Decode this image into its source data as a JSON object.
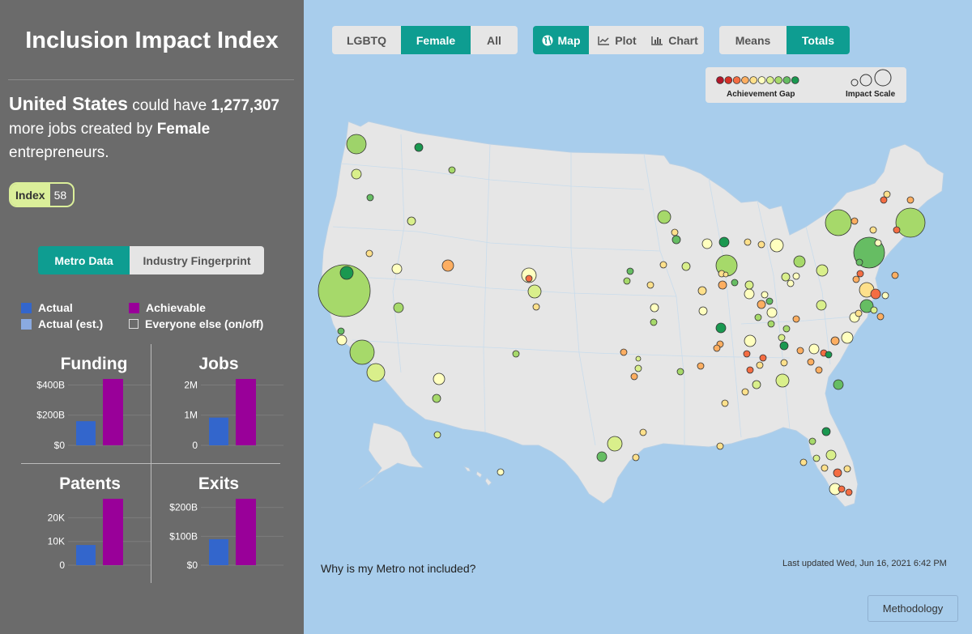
{
  "sidebar": {
    "title": "Inclusion Impact Index",
    "headline": {
      "country": "United States",
      "text1": " could have ",
      "jobs": "1,277,307",
      "text2": " more jobs created by ",
      "group": "Female",
      "text3": " entrepreneurs."
    },
    "index_label": "Index",
    "index_value": "58",
    "tabs": {
      "metro": "Metro Data",
      "industry": "Industry Fingerprint"
    },
    "legend": {
      "actual": "Actual",
      "achievable": "Achievable",
      "actual_est": "Actual (est.)",
      "everyone": "Everyone else (on/off)"
    },
    "colors": {
      "actual": "#3366cc",
      "actual_est": "#8aaae0",
      "achievable": "#990099"
    },
    "charts": [
      {
        "title": "Funding",
        "ticks": [
          "$400B",
          "$200B",
          "$0"
        ],
        "tick_values": [
          400,
          200,
          0
        ],
        "max": 440,
        "actual": 160,
        "achievable": 440
      },
      {
        "title": "Jobs",
        "ticks": [
          "2M",
          "1M",
          "0"
        ],
        "tick_values": [
          2,
          1,
          0
        ],
        "max": 2.2,
        "actual": 0.92,
        "achievable": 2.2
      },
      {
        "title": "Patents",
        "ticks": [
          "20K",
          "10K",
          "0"
        ],
        "tick_values": [
          20,
          10,
          0
        ],
        "max": 28,
        "actual": 8.5,
        "achievable": 28
      },
      {
        "title": "Exits",
        "ticks": [
          "$200B",
          "$100B",
          "$0"
        ],
        "tick_values": [
          200,
          100,
          0
        ],
        "max": 230,
        "actual": 90,
        "achievable": 230
      }
    ]
  },
  "toolbar": {
    "groups": [
      "LGBTQ",
      "Female",
      "All"
    ],
    "views": [
      "Map",
      "Plot",
      "Chart"
    ],
    "measures": [
      "Means",
      "Totals"
    ]
  },
  "legend": {
    "gap_label": "Achievement Gap",
    "impact_label": "Impact Scale",
    "gap_colors": [
      "#b2182b",
      "#d73027",
      "#f46d43",
      "#fdae61",
      "#fee08b",
      "#ffffbf",
      "#d9ef8b",
      "#a6d96a",
      "#66bd63",
      "#1a9850"
    ]
  },
  "metros": [
    [
      65,
      48,
      12,
      "#9ed36a"
    ],
    [
      142,
      52,
      5,
      "#1a9850"
    ],
    [
      65,
      85,
      6,
      "#d9ef8b"
    ],
    [
      82,
      114,
      4,
      "#66bd63"
    ],
    [
      133,
      143,
      5,
      "#d9ef8b"
    ],
    [
      183,
      80,
      4,
      "#a6d96a"
    ],
    [
      81,
      183,
      4,
      "#fee08b"
    ],
    [
      178,
      198,
      7,
      "#fdae61"
    ],
    [
      445,
      138,
      8,
      "#a6d96a"
    ],
    [
      458,
      157,
      4,
      "#fee08b"
    ],
    [
      460,
      166,
      5,
      "#66bd63"
    ],
    [
      498,
      171,
      6,
      "#ffffbf"
    ],
    [
      519,
      169,
      6,
      "#1a9850"
    ],
    [
      522,
      198,
      13,
      "#a6d96a"
    ],
    [
      521,
      209,
      3,
      "#fee08b"
    ],
    [
      548,
      169,
      4,
      "#fee08b"
    ],
    [
      565,
      172,
      4,
      "#fee08b"
    ],
    [
      584,
      173,
      8,
      "#ffffbf"
    ],
    [
      612,
      193,
      7,
      "#a6d96a"
    ],
    [
      640,
      204,
      7,
      "#d9ef8b"
    ],
    [
      595,
      212,
      5,
      "#d9ef8b"
    ],
    [
      608,
      211,
      4,
      "#ffffbf"
    ],
    [
      601,
      220,
      4,
      "#ffffbf"
    ],
    [
      550,
      222,
      5,
      "#d9ef8b"
    ],
    [
      516,
      208,
      4,
      "#fee08b"
    ],
    [
      517,
      222,
      5,
      "#fdae61"
    ],
    [
      532,
      219,
      4,
      "#66bd63"
    ],
    [
      550,
      233,
      6,
      "#ffffbf"
    ],
    [
      569,
      234,
      4,
      "#ffffbf"
    ],
    [
      561,
      262,
      4,
      "#a6d96a"
    ],
    [
      578,
      256,
      6,
      "#ffffbf"
    ],
    [
      575,
      242,
      4,
      "#66bd63"
    ],
    [
      565,
      246,
      5,
      "#fdae61"
    ],
    [
      472,
      199,
      5,
      "#d9ef8b"
    ],
    [
      444,
      197,
      4,
      "#fee08b"
    ],
    [
      403,
      205,
      4,
      "#66bd63"
    ],
    [
      433,
      250,
      5,
      "#ffffbf"
    ],
    [
      493,
      254,
      5,
      "#ffffbf"
    ],
    [
      278,
      210,
      9,
      "#ffffbf"
    ],
    [
      285,
      230,
      8,
      "#d9ef8b"
    ],
    [
      287,
      249,
      4,
      "#fee08b"
    ],
    [
      278,
      214,
      4,
      "#f46d43"
    ],
    [
      399,
      217,
      4,
      "#a6d96a"
    ],
    [
      428,
      222,
      4,
      "#fee08b"
    ],
    [
      492,
      229,
      5,
      "#fee08b"
    ],
    [
      515,
      275,
      6,
      "#1a9850"
    ],
    [
      551,
      291,
      7,
      "#ffffbf"
    ],
    [
      551,
      327,
      4,
      "#f46d43"
    ],
    [
      559,
      345,
      5,
      "#d9ef8b"
    ],
    [
      591,
      340,
      8,
      "#d9ef8b"
    ],
    [
      593,
      297,
      5,
      "#1a9850"
    ],
    [
      593,
      318,
      4,
      "#fee08b"
    ],
    [
      613,
      303,
      4,
      "#fdae61"
    ],
    [
      630,
      301,
      6,
      "#ffffbf"
    ],
    [
      642,
      306,
      4,
      "#f46d43"
    ],
    [
      626,
      317,
      4,
      "#fdae61"
    ],
    [
      636,
      327,
      4,
      "#fdae61"
    ],
    [
      660,
      345,
      6,
      "#66bd63"
    ],
    [
      648,
      308,
      4,
      "#1a9850"
    ],
    [
      656,
      291,
      5,
      "#fdae61"
    ],
    [
      671,
      287,
      7,
      "#ffffbf"
    ],
    [
      680,
      262,
      6,
      "#ffffbf"
    ],
    [
      685,
      257,
      4,
      "#fee08b"
    ],
    [
      695,
      248,
      8,
      "#66bd63"
    ],
    [
      695,
      228,
      9,
      "#fee08b"
    ],
    [
      706,
      233,
      6,
      "#f46d43"
    ],
    [
      704,
      253,
      4,
      "#d9ef8b"
    ],
    [
      712,
      261,
      4,
      "#fdae61"
    ],
    [
      682,
      215,
      4,
      "#fdae61"
    ],
    [
      686,
      194,
      4,
      "#66bd63"
    ],
    [
      687,
      208,
      4,
      "#f46d43"
    ],
    [
      639,
      247,
      6,
      "#d9ef8b"
    ],
    [
      608,
      264,
      4,
      "#fdae61"
    ],
    [
      596,
      276,
      4,
      "#a6d96a"
    ],
    [
      577,
      270,
      4,
      "#a6d96a"
    ],
    [
      547,
      307,
      4,
      "#f46d43"
    ],
    [
      514,
      295,
      4,
      "#fdae61"
    ],
    [
      510,
      300,
      4,
      "#fdae61"
    ],
    [
      413,
      313,
      3,
      "#d9ef8b"
    ],
    [
      645,
      403,
      5,
      "#1a9850"
    ],
    [
      628,
      415,
      4,
      "#a6d96a"
    ],
    [
      651,
      432,
      6,
      "#d9ef8b"
    ],
    [
      633,
      436,
      4,
      "#d9ef8b"
    ],
    [
      643,
      448,
      4,
      "#fee08b"
    ],
    [
      671,
      449,
      4,
      "#fee08b"
    ],
    [
      659,
      454,
      5,
      "#f46d43"
    ],
    [
      656,
      474,
      7,
      "#ffffbf"
    ],
    [
      664,
      474,
      4,
      "#f46d43"
    ],
    [
      673,
      478,
      4,
      "#f46d43"
    ],
    [
      617,
      441,
      4,
      "#fee08b"
    ],
    [
      419,
      404,
      4,
      "#fee08b"
    ],
    [
      384,
      418,
      9,
      "#d9ef8b"
    ],
    [
      368,
      434,
      6,
      "#66bd63"
    ],
    [
      410,
      435,
      4,
      "#fee08b"
    ],
    [
      514,
      421,
      4,
      "#fee08b"
    ],
    [
      432,
      268,
      4,
      "#a6d96a"
    ],
    [
      395,
      305,
      4,
      "#fdae61"
    ],
    [
      408,
      335,
      4,
      "#fdae61"
    ],
    [
      413,
      325,
      4,
      "#d9ef8b"
    ],
    [
      465,
      329,
      4,
      "#a6d96a"
    ],
    [
      490,
      322,
      4,
      "#fdae61"
    ],
    [
      563,
      321,
      4,
      "#fee08b"
    ],
    [
      567,
      312,
      4,
      "#f46d43"
    ],
    [
      590,
      287,
      4,
      "#d9ef8b"
    ],
    [
      545,
      354,
      4,
      "#fee08b"
    ],
    [
      520,
      368,
      4,
      "#fee08b"
    ],
    [
      262,
      307,
      4,
      "#a6d96a"
    ],
    [
      243,
      453,
      4,
      "#ffffbf"
    ],
    [
      165,
      407,
      4,
      "#d9ef8b"
    ],
    [
      164,
      362,
      5,
      "#a6d96a"
    ],
    [
      167,
      338,
      7,
      "#ffffbf"
    ],
    [
      117,
      250,
      6,
      "#a6d96a"
    ],
    [
      115,
      202,
      6,
      "#ffffbf"
    ],
    [
      50,
      229,
      32,
      "#a6d96a"
    ],
    [
      53,
      207,
      8,
      "#1a9850"
    ],
    [
      47,
      290,
      6,
      "#ffffbf"
    ],
    [
      46,
      279,
      4,
      "#66bd63"
    ],
    [
      72,
      305,
      15,
      "#a6d96a"
    ],
    [
      89,
      330,
      11,
      "#d9ef8b"
    ],
    [
      660,
      145,
      16,
      "#a6d96a"
    ],
    [
      698,
      182,
      19,
      "#66bd63"
    ],
    [
      749,
      145,
      18,
      "#a6d96a"
    ],
    [
      749,
      117,
      4,
      "#fdae61"
    ],
    [
      716,
      117,
      4,
      "#f46d43"
    ],
    [
      720,
      110,
      4,
      "#fee08b"
    ],
    [
      680,
      143,
      4,
      "#fdae61"
    ],
    [
      732,
      154,
      4,
      "#f46d43"
    ],
    [
      703,
      154,
      4,
      "#fee08b"
    ],
    [
      718,
      235,
      4,
      "#ffffbf"
    ],
    [
      709,
      170,
      4,
      "#ffffbf"
    ],
    [
      730,
      210,
      4,
      "#fdae61"
    ]
  ]
}
